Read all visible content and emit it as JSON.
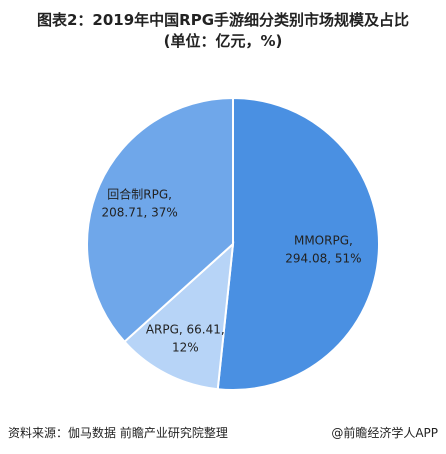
{
  "title": {
    "line1": "图表2：2019年中国RPG手游细分类别市场规模及占比",
    "line2": "(单位：亿元，%)"
  },
  "chart_data": {
    "type": "pie",
    "slices": [
      {
        "label_line1": "MMORPG,",
        "label_line2": "294.08, 51%",
        "value": 294.08,
        "percent": 51,
        "color": "#4a90e2"
      },
      {
        "label_line1": "ARPG, 66.41,",
        "label_line2": "12%",
        "value": 66.41,
        "percent": 12,
        "color": "#b7d4f7"
      },
      {
        "label_line1": "回合制RPG,",
        "label_line2": "208.71, 37%",
        "value": 208.71,
        "percent": 37,
        "color": "#6fa7ea"
      }
    ]
  },
  "footer": {
    "source": "资料来源：伽马数据 前瞻产业研究院整理",
    "brand": "@前瞻经济学人APP"
  }
}
